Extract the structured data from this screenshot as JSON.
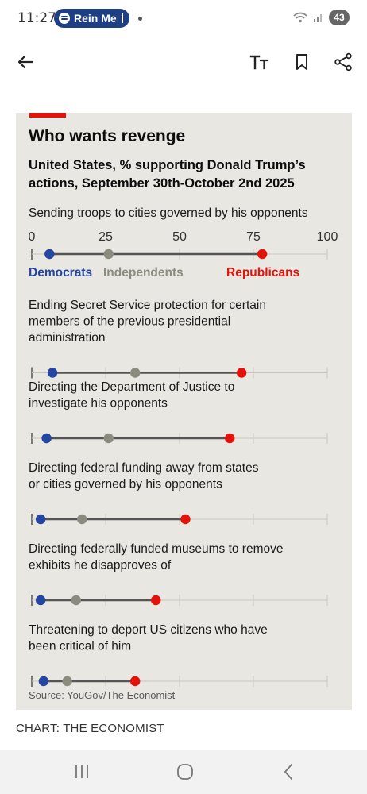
{
  "status_bar": {
    "time": "11:27",
    "media_pill_label": "Rein Me",
    "battery_level": "43"
  },
  "toolbar": {
    "back_icon": "arrow-left-icon",
    "text_size_label": "TT",
    "bookmark_icon": "bookmark-icon",
    "share_icon": "share-icon"
  },
  "chart_data": {
    "type": "dot-range",
    "title": "Who wants revenge",
    "subtitle": "United States, % supporting Donald Trump’s actions, September 30th-October 2nd 2025",
    "x_ticks": [
      0,
      25,
      50,
      75,
      100
    ],
    "xlim": [
      0,
      100
    ],
    "grid": true,
    "series": [
      {
        "name": "Democrats",
        "color": "#2445a0"
      },
      {
        "name": "Independents",
        "color": "#8c8b80"
      },
      {
        "name": "Republicans",
        "color": "#e3120b"
      }
    ],
    "categories": [
      {
        "label": "Sending troops to cities governed by his opponents",
        "values": {
          "Democrats": 6,
          "Independents": 26,
          "Republicans": 78
        }
      },
      {
        "label": "Ending Secret Service protection for certain members of the previous presidential administration",
        "values": {
          "Democrats": 7,
          "Independents": 35,
          "Republicans": 71
        }
      },
      {
        "label": "Directing the Department of Justice to investigate his opponents",
        "values": {
          "Democrats": 5,
          "Independents": 26,
          "Republicans": 67
        }
      },
      {
        "label": "Directing federal funding away from states or cities governed by his opponents",
        "values": {
          "Democrats": 3,
          "Independents": 17,
          "Republicans": 52
        }
      },
      {
        "label": "Directing federally funded museums to remove exhibits he disapproves of",
        "values": {
          "Democrats": 3,
          "Independents": 15,
          "Republicans": 42
        }
      },
      {
        "label": "Threatening to deport US citizens who have been critical of him",
        "values": {
          "Democrats": 4,
          "Independents": 12,
          "Republicans": 35
        }
      }
    ],
    "source": "Source: YouGov/The Economist"
  },
  "credit": "CHART: THE ECONOMIST",
  "nav": {
    "recents_icon": "recents-icon",
    "home_icon": "home-icon",
    "back_icon": "back-chevron-icon"
  }
}
